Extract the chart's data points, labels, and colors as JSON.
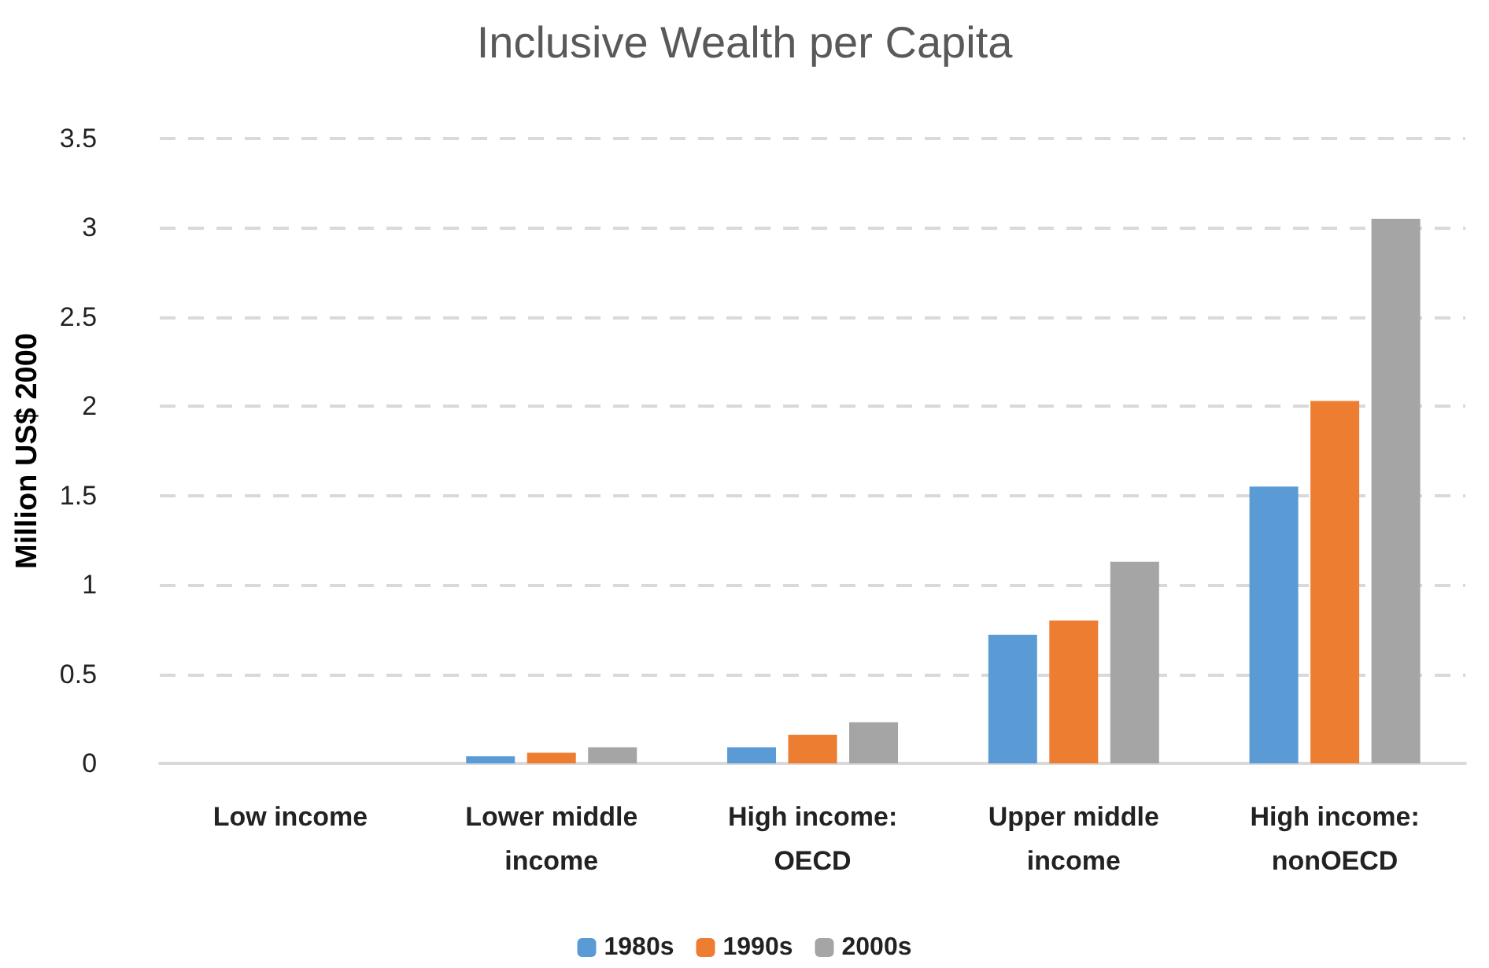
{
  "chart_data": {
    "type": "bar",
    "title": "Inclusive Wealth per Capita",
    "ylabel": "Million US$ 2000",
    "categories": [
      "Low income",
      "Lower middle\nincome",
      "High income:\nOECD",
      "Upper middle\nincome",
      "High income:\nnonOECD"
    ],
    "series": [
      {
        "name": "1980s",
        "color": "#5b9bd5",
        "values": [
          0,
          0.04,
          0.09,
          0.72,
          1.55
        ]
      },
      {
        "name": "1990s",
        "color": "#ed7d31",
        "values": [
          0,
          0.06,
          0.16,
          0.8,
          2.03
        ]
      },
      {
        "name": "2000s",
        "color": "#a5a5a5",
        "values": [
          0,
          0.09,
          0.23,
          1.13,
          3.05
        ]
      }
    ],
    "ylim": [
      0,
      3.5
    ],
    "yticks": [
      0,
      0.5,
      1,
      1.5,
      2,
      2.5,
      3,
      3.5
    ],
    "grid": "y",
    "legend": "bottom"
  }
}
